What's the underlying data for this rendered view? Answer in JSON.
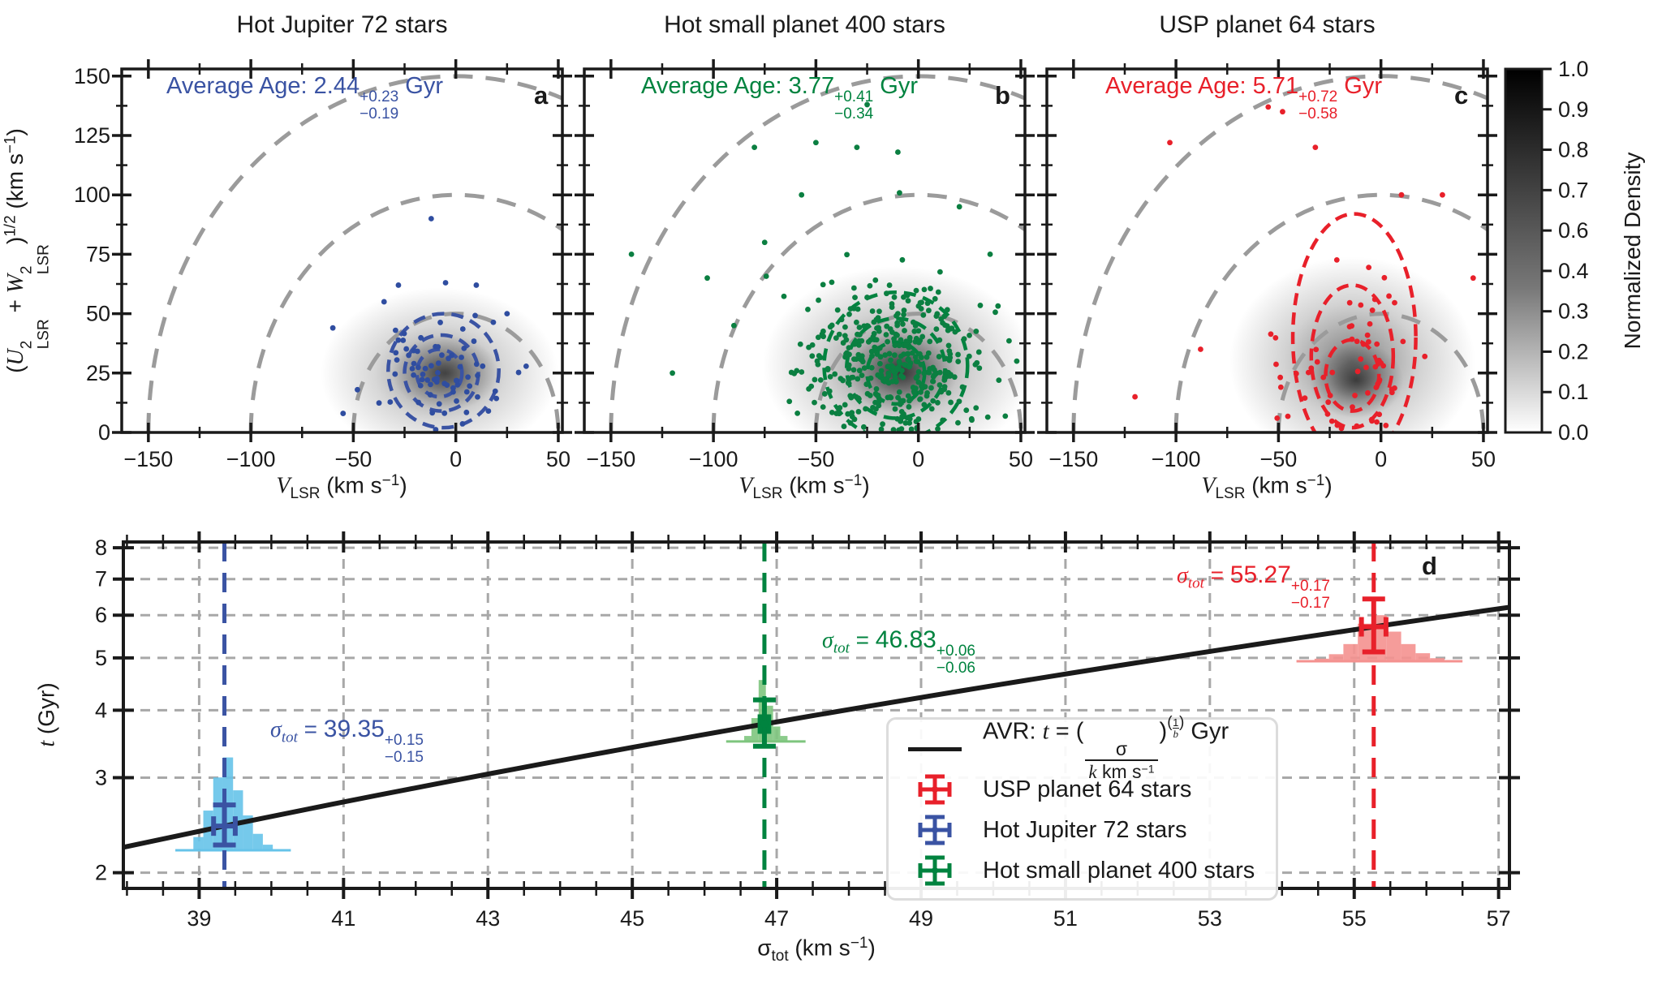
{
  "colors": {
    "blue": "#3a53a3",
    "blue_scatter": "#2f4da0",
    "blue_hist": "#66c3e9",
    "green": "#00833f",
    "green_scatter": "#0b7f41",
    "green_hist": "#7ec57e",
    "red": "#e8202a",
    "red_scatter": "#e8202a",
    "red_hist": "#f4918f",
    "arc_gray": "#9b9b9b",
    "grid_gray": "#a8a8a8",
    "black": "#1a1a1a"
  },
  "chart_data": {
    "toomre": [
      {
        "type": "scatter",
        "title": "Hot Jupiter 72 stars",
        "letter": "a",
        "age": {
          "prefix": "Average Age: ",
          "value": "2.44",
          "plus": "+0.23",
          "minus": "−0.19",
          "unit": " Gyr"
        },
        "color": "#3a53a3",
        "scatter_color": "#2f4da0",
        "n_points": 72,
        "seed": 7,
        "cluster": {
          "cx": -8,
          "cy": 26,
          "sx": 14,
          "sy": 11
        },
        "outliers": [
          [
            -12,
            90
          ],
          [
            -28,
            62
          ],
          [
            -5,
            63
          ],
          [
            -60,
            44
          ],
          [
            -35,
            55
          ],
          [
            25,
            50
          ],
          [
            -48,
            18
          ],
          [
            -55,
            8
          ],
          [
            10,
            62
          ]
        ],
        "contours": [
          [
            -6,
            26,
            27,
            24
          ],
          [
            -7,
            25,
            18,
            16
          ],
          [
            -8,
            25,
            11,
            10
          ]
        ],
        "density": [
          [
            -8,
            25,
            58,
            36,
            0.45
          ],
          [
            -5,
            25,
            26,
            16,
            0.55
          ]
        ]
      },
      {
        "type": "scatter",
        "title": "Hot small planet 400 stars",
        "letter": "b",
        "age": {
          "prefix": "Average Age: ",
          "value": "3.77",
          "plus": "+0.41",
          "minus": "−0.34",
          "unit": " Gyr"
        },
        "color": "#00833f",
        "scatter_color": "#0b7f41",
        "n_points": 400,
        "seed": 21,
        "cluster": {
          "cx": -12,
          "cy": 30,
          "sx": 22,
          "sy": 17
        },
        "outliers": [
          [
            -103,
            65
          ],
          [
            -80,
            120
          ],
          [
            -57,
            100
          ],
          [
            -30,
            120
          ],
          [
            -10,
            118
          ],
          [
            20,
            95
          ],
          [
            48,
            30
          ],
          [
            -120,
            25
          ],
          [
            -140,
            75
          ],
          [
            35,
            75
          ],
          [
            -75,
            80
          ],
          [
            -90,
            45
          ],
          [
            -50,
            122
          ],
          [
            -25,
            138
          ]
        ],
        "contours": [
          [
            -11,
            28,
            35,
            31
          ],
          [
            -11,
            27,
            24,
            21
          ],
          [
            -11,
            25,
            14,
            13
          ]
        ],
        "density": [
          [
            -10,
            28,
            66,
            42,
            0.5
          ],
          [
            -8,
            25,
            27,
            17,
            0.6
          ]
        ]
      },
      {
        "type": "scatter",
        "title": "USP planet 64 stars",
        "letter": "c",
        "age": {
          "prefix": "Average Age: ",
          "value": "5.71",
          "plus": "+0.72",
          "minus": "−0.58",
          "unit": " Gyr"
        },
        "color": "#e8202a",
        "scatter_color": "#e8202a",
        "n_points": 64,
        "seed": 33,
        "cluster": {
          "cx": -14,
          "cy": 28,
          "sx": 18,
          "sy": 17
        },
        "outliers": [
          [
            -103,
            122
          ],
          [
            -55,
            137
          ],
          [
            -48,
            135
          ],
          [
            30,
            100
          ],
          [
            -88,
            35
          ],
          [
            45,
            65
          ],
          [
            10,
            100
          ],
          [
            -120,
            15
          ],
          [
            -32,
            120
          ]
        ],
        "contours": [
          [
            -13,
            40,
            30,
            52
          ],
          [
            -14,
            32,
            20,
            30
          ],
          [
            -14,
            24,
            13,
            15
          ]
        ],
        "density": [
          [
            -14,
            30,
            60,
            44,
            0.5
          ],
          [
            -12,
            22,
            23,
            16,
            0.62
          ]
        ]
      }
    ],
    "toomre_axes": {
      "xlim": [
        -163,
        52
      ],
      "ylim": [
        0,
        153
      ],
      "xticks": [
        -150,
        -100,
        -50,
        0,
        50
      ],
      "xtick_labels": [
        "−150",
        "−100",
        "−50",
        "0",
        "50"
      ],
      "yticks": [
        0,
        25,
        50,
        75,
        100,
        125,
        150
      ],
      "ytick_labels": [
        "0",
        "25",
        "50",
        "75",
        "100",
        "125",
        "150"
      ],
      "x_minor_step": 25,
      "y_minor_step": 12.5,
      "arcs": [
        50,
        100,
        150
      ],
      "xlabel": {
        "v": "V",
        "sub": "LSR",
        "rest": " (km s",
        "sup": "−1",
        "close": ")"
      },
      "ylabel": {
        "open": "(",
        "u": "U",
        "two": "2",
        "lsr": "LSR",
        "plus": " + ",
        "w": "W",
        "close": ")",
        "half": "1/2",
        "kms": " (km s",
        "minusone": "−1",
        "paren": ")"
      }
    },
    "colorbar": {
      "tick_labels": [
        "1.0",
        "0.9",
        "0.8",
        "0.7",
        "0.6",
        "0.4",
        "0.3",
        "0.2",
        "0.1",
        "0.0"
      ],
      "label": "Normalized Density"
    },
    "avr": {
      "type": "line",
      "letter": "d",
      "xlim": [
        37.95,
        57.15
      ],
      "ylim": [
        1.87,
        8.2
      ],
      "y_scale": "log",
      "xticks": [
        39,
        41,
        43,
        45,
        47,
        49,
        51,
        53,
        55,
        57
      ],
      "yticks": [
        2,
        3,
        4,
        5,
        6,
        7,
        8
      ],
      "x_minor_step": 0.5,
      "line": {
        "k": 27.55,
        "inv_b": 2.502
      },
      "series": [
        {
          "name": "Hot Jupiter 72 stars",
          "color": "#3a53a3",
          "hist_color": "#66c3e9",
          "sigma": 39.35,
          "sigma_err_plus": 0.15,
          "sigma_err_minus": 0.15,
          "t": 2.44,
          "t_err_plus": 0.23,
          "t_err_minus": 0.19,
          "ann": {
            "sym": "σ",
            "sub": "tot",
            "eq": " = ",
            "value": "39.35",
            "plus": "+0.15",
            "minus": "−0.15"
          },
          "hist": {
            "x0": 38.92,
            "x1": 40.02,
            "base_t": 2.2,
            "peak_t": 3.27,
            "bars": [
              0.12,
              0.38,
              0.75,
              1.0,
              0.6,
              0.33,
              0.15,
              0.05
            ]
          }
        },
        {
          "name": "Hot small planet 400 stars",
          "color": "#00833f",
          "hist_color": "#7ec57e",
          "sigma": 46.83,
          "sigma_err_plus": 0.06,
          "sigma_err_minus": 0.06,
          "t": 3.77,
          "t_err_plus": 0.41,
          "t_err_minus": 0.34,
          "ann": {
            "sym": "σ",
            "sub": "tot",
            "eq": " = ",
            "value": "46.83",
            "plus": "+0.06",
            "minus": "−0.06"
          },
          "hist": {
            "x0": 46.55,
            "x1": 47.15,
            "base_t": 3.5,
            "peak_t": 4.55,
            "bars": [
              0.08,
              0.35,
              1.0,
              0.55,
              0.22,
              0.08
            ]
          }
        },
        {
          "name": "USP planet 64 stars",
          "color": "#e8202a",
          "hist_color": "#f4918f",
          "sigma": 55.27,
          "sigma_err_plus": 0.17,
          "sigma_err_minus": 0.17,
          "t": 5.71,
          "t_err_plus": 0.72,
          "t_err_minus": 0.58,
          "ann": {
            "sym": "σ",
            "sub": "tot",
            "eq": " = ",
            "value": "55.27",
            "plus": "+0.17",
            "minus": "−0.17"
          },
          "hist": {
            "x0": 54.45,
            "x1": 56.25,
            "base_t": 4.93,
            "peak_t": 6.0,
            "bars": [
              0.05,
              0.14,
              0.35,
              0.8,
              1.0,
              0.62,
              0.35,
              0.16,
              0.06
            ]
          }
        }
      ],
      "legend": {
        "formula": {
          "name": "AVR: ",
          "t": "t",
          "eq": " = (",
          "num": "σ",
          "den_k": "k",
          "den_rest": " km s",
          "den_sup": "−1",
          "close": ")",
          "exp_open": "(",
          "exp_num": "1",
          "exp_den": "b",
          "exp_close": ")",
          "unit": " Gyr"
        },
        "entries": [
          {
            "label": "USP planet 64 stars",
            "color": "#e8202a"
          },
          {
            "label": "Hot Jupiter 72 stars",
            "color": "#3a53a3"
          },
          {
            "label": "Hot small planet 400 stars",
            "color": "#00833f"
          }
        ]
      },
      "xlabel": {
        "sym": "σ",
        "sub": "tot",
        "rest": " (km s",
        "sup": "−1",
        "close": ")"
      },
      "ylabel": {
        "t": "t",
        "rest": " (Gyr)"
      }
    }
  }
}
